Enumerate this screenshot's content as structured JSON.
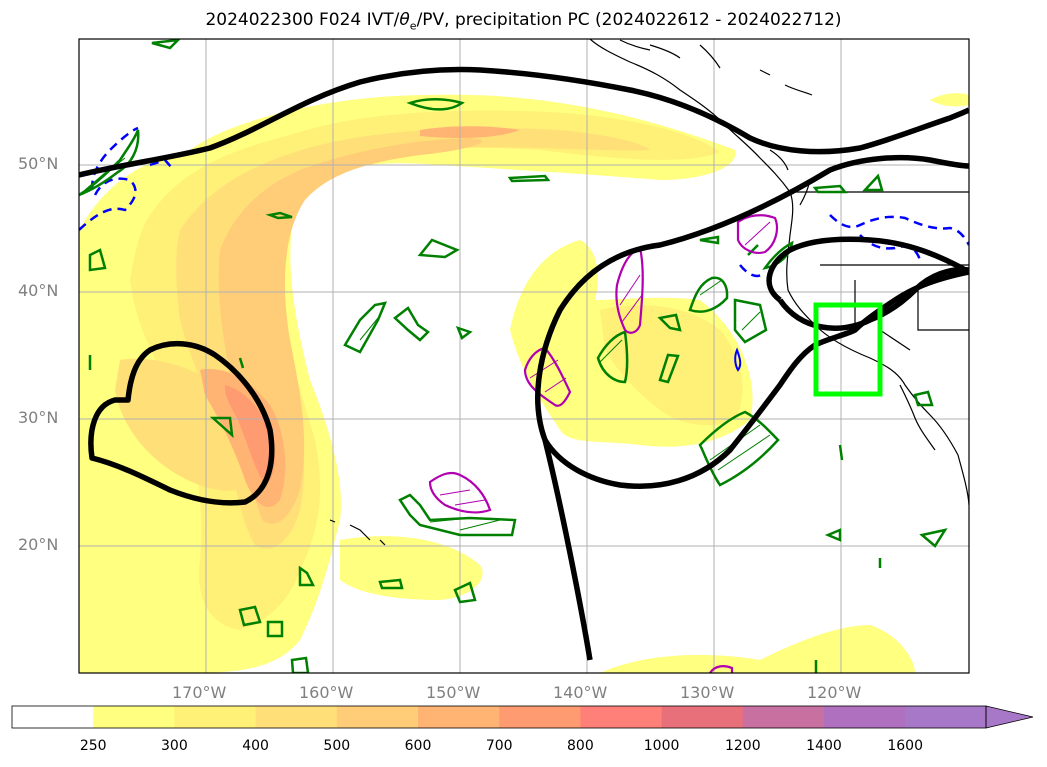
{
  "title": {
    "prefix": "2024022300 F024 IVT/",
    "theta": "θ",
    "theta_sub": "e",
    "suffix": "/PV, precipitation PC (2024022612 - 2024022712)"
  },
  "lat_labels": [
    "50°N",
    "40°N",
    "30°N",
    "20°N"
  ],
  "lon_labels": [
    "170°W",
    "160°W",
    "150°W",
    "140°W",
    "130°W",
    "120°W"
  ],
  "colorbar": {
    "ticks": [
      "250",
      "300",
      "400",
      "500",
      "600",
      "700",
      "800",
      "1000",
      "1200",
      "1400",
      "1600"
    ],
    "colors": [
      "#ffff80",
      "#fff078",
      "#ffe078",
      "#ffcd78",
      "#ffb474",
      "#ff9b70",
      "#ff8078",
      "#e8707a",
      "#c870a0",
      "#b070c0",
      "#a878c8"
    ],
    "extend": "max"
  },
  "colors": {
    "jet_contour": "#000000",
    "theta_e_contour": "#008000",
    "pv_contour": "#b000b0",
    "dashed_contour": "#0000ff",
    "highlight_box": "#00ff00",
    "coastline": "#000000",
    "gridline": "#b0b0b0"
  }
}
